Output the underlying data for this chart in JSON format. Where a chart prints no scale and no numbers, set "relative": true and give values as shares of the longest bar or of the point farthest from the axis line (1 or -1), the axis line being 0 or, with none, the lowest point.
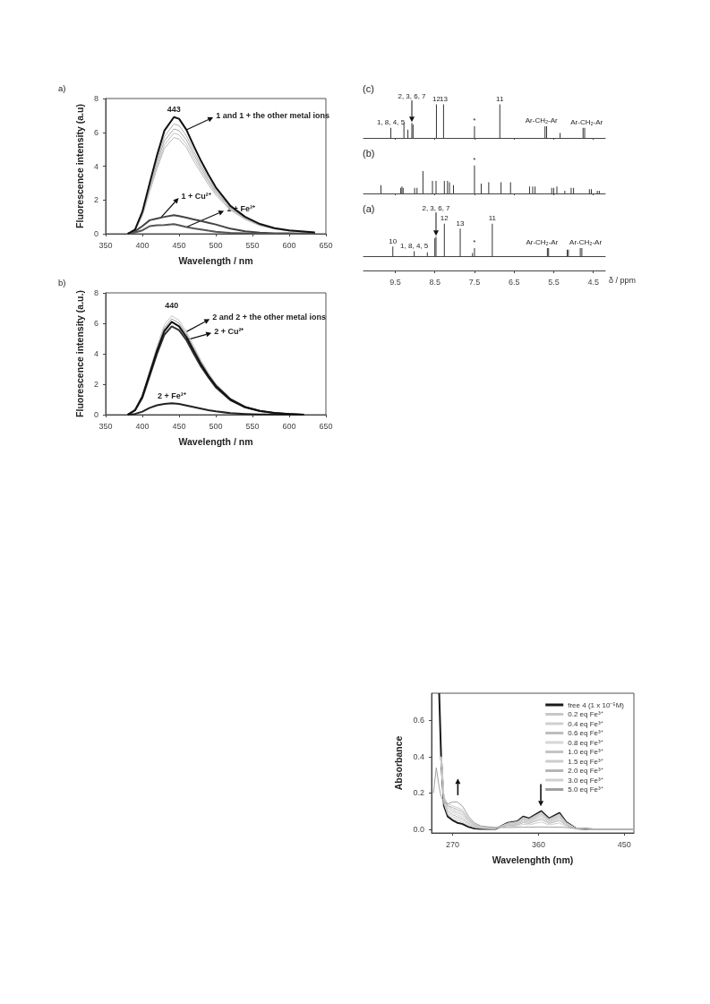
{
  "chart_data": [
    {
      "type": "line",
      "title": "a)",
      "xlabel": "Wavelength / nm",
      "ylabel": "Fluorescence intensity (a.u)",
      "xlim": [
        350,
        650
      ],
      "xticks": [
        350,
        400,
        450,
        500,
        550,
        600,
        650
      ],
      "ylim": [
        0,
        8
      ],
      "yticks": [
        0,
        2,
        4,
        6,
        8
      ],
      "x": [
        380,
        390,
        400,
        410,
        420,
        430,
        443,
        450,
        460,
        470,
        480,
        490,
        500,
        520,
        540,
        560,
        580,
        600,
        620,
        635
      ],
      "series": [
        {
          "color": "#b0b0b0",
          "values": [
            0,
            0.23,
            1.2,
            2.8,
            4.4,
            5.75,
            6.5,
            6.4,
            5.8,
            4.9,
            4.05,
            3.3,
            2.6,
            1.55,
            0.95,
            0.55,
            0.31,
            0.19,
            0.12,
            0.07
          ]
        },
        {
          "color": "#a8a8a8",
          "values": [
            0,
            0.22,
            1.15,
            2.7,
            4.2,
            5.5,
            6.2,
            6.1,
            5.55,
            4.7,
            3.9,
            3.15,
            2.5,
            1.5,
            0.9,
            0.52,
            0.3,
            0.18,
            0.11,
            0.07
          ]
        },
        {
          "color": "#c0c0c0",
          "values": [
            0,
            0.21,
            1.1,
            2.6,
            4.0,
            5.25,
            5.95,
            5.85,
            5.3,
            4.5,
            3.75,
            3.05,
            2.4,
            1.45,
            0.88,
            0.5,
            0.29,
            0.17,
            0.11,
            0.07
          ]
        },
        {
          "color": "#b8b8b8",
          "values": [
            0,
            0.2,
            1.05,
            2.5,
            3.85,
            5.05,
            5.7,
            5.6,
            5.1,
            4.3,
            3.6,
            2.9,
            2.3,
            1.4,
            0.85,
            0.48,
            0.28,
            0.17,
            0.1,
            0.06
          ]
        },
        {
          "color": "#444444",
          "values": [
            0,
            0.15,
            0.45,
            0.8,
            0.9,
            1.0,
            1.1,
            1.05,
            0.95,
            0.85,
            0.75,
            0.65,
            0.55,
            0.3,
            0.15,
            0.07,
            0.03,
            0.02,
            0.01,
            0
          ]
        },
        {
          "color": "#555555",
          "values": [
            0,
            0.08,
            0.2,
            0.45,
            0.5,
            0.52,
            0.57,
            0.5,
            0.4,
            0.32,
            0.25,
            0.18,
            0.12,
            0.05,
            0.02,
            0,
            0,
            0,
            0,
            0
          ]
        },
        {
          "color": "#111111",
          "values": [
            0,
            0.25,
            1.3,
            3.0,
            4.65,
            6.1,
            6.9,
            6.8,
            6.15,
            5.2,
            4.3,
            3.5,
            2.75,
            1.65,
            1.0,
            0.58,
            0.33,
            0.2,
            0.13,
            0.08
          ]
        }
      ],
      "annotations": [
        {
          "text": "443",
          "x": 443,
          "y": 6.9
        },
        {
          "text": "1 and 1 + the other metal ions",
          "x": 460,
          "y": 6.15
        },
        {
          "text": "1 + Cu²⁺",
          "x": 425,
          "y": 0.95
        },
        {
          "text": "1 + Fe³⁺",
          "x": 460,
          "y": 0.4
        }
      ]
    },
    {
      "type": "bar",
      "title": "(c)",
      "relative": true,
      "tick_labels": false,
      "xlim": [
        10.3,
        4.2
      ],
      "xticks": [
        9.5,
        8.5,
        7.5,
        6.5,
        5.5,
        4.5
      ],
      "series": [
        {
          "color": "#333333",
          "x": [
            9.61,
            9.28,
            9.18,
            9.08,
            9.05,
            8.46,
            8.28,
            7.5,
            6.86,
            5.72,
            5.68,
            5.34,
            4.76,
            4.72
          ],
          "values": [
            0.3,
            0.45,
            0.25,
            0.45,
            0.4,
            1,
            1,
            0.35,
            1,
            0.35,
            0.35,
            0.15,
            0.3,
            0.3
          ]
        }
      ],
      "annotations": [
        {
          "text": "1, 8, 4, 5",
          "x": 9.61,
          "y": 0.3
        },
        {
          "text": "2, 3, 6, 7",
          "x": 9.08,
          "y": 0.45
        },
        {
          "text": "12",
          "x": 8.46,
          "y": 1
        },
        {
          "text": "13",
          "x": 8.28,
          "y": 1
        },
        {
          "text": "*",
          "x": 7.5,
          "y": 0.35
        },
        {
          "text": "11",
          "x": 6.86,
          "y": 1
        },
        {
          "text": "Ar-CH₂-Ar",
          "x": 5.72,
          "y": 0.35
        },
        {
          "text": "Ar-CH₂-Ar",
          "x": 4.76,
          "y": 0.3
        }
      ]
    },
    {
      "type": "bar",
      "title": "(b)",
      "relative": true,
      "tick_labels": false,
      "xlim": [
        10.3,
        4.2
      ],
      "xticks": [
        9.5,
        8.5,
        7.5,
        6.5,
        5.5,
        4.5
      ],
      "series": [
        {
          "color": "#333333",
          "x": [
            9.86,
            9.36,
            9.33,
            9.3,
            9.01,
            8.95,
            8.8,
            8.56,
            8.47,
            8.26,
            8.18,
            8.13,
            8.03,
            7.5,
            7.33,
            7.14,
            6.83,
            6.59,
            6.11,
            6.03,
            5.97,
            5.55,
            5.5,
            5.42,
            5.22,
            5.06,
            5.0,
            4.6,
            4.55,
            4.4,
            4.35
          ],
          "values": [
            0.3,
            0.2,
            0.25,
            0.2,
            0.2,
            0.2,
            0.8,
            0.45,
            0.45,
            0.45,
            0.45,
            0.4,
            0.3,
            1,
            0.35,
            0.4,
            0.4,
            0.4,
            0.25,
            0.25,
            0.25,
            0.2,
            0.2,
            0.25,
            0.1,
            0.2,
            0.2,
            0.15,
            0.15,
            0.1,
            0.1
          ]
        }
      ],
      "annotations": [
        {
          "text": "*",
          "x": 7.5,
          "y": 1
        }
      ]
    },
    {
      "type": "bar",
      "title": "(a)",
      "relative": true,
      "tick_labels": "x",
      "xlabel": "δ / ppm",
      "xlim": [
        10.3,
        4.2
      ],
      "xticks": [
        9.5,
        8.5,
        7.5,
        6.5,
        5.5,
        4.5
      ],
      "series": [
        {
          "color": "#333333",
          "x": [
            9.56,
            9.02,
            8.69,
            8.5,
            8.47,
            8.26,
            7.86,
            7.55,
            7.5,
            7.05,
            5.66,
            5.63,
            5.16,
            5.13,
            4.83,
            4.79
          ],
          "values": [
            0.3,
            0.15,
            0.12,
            0.55,
            0.6,
            1,
            0.85,
            0.1,
            0.25,
            1,
            0.25,
            0.25,
            0.2,
            0.2,
            0.25,
            0.25
          ]
        }
      ],
      "annotations": [
        {
          "text": "10",
          "x": 9.56,
          "y": 0.3
        },
        {
          "text": "1, 8, 4, 5",
          "x": 9.02,
          "y": 0.15
        },
        {
          "text": "2, 3, 6, 7",
          "x": 8.47,
          "y": 0.6
        },
        {
          "text": "12",
          "x": 8.26,
          "y": 1
        },
        {
          "text": "13",
          "x": 7.86,
          "y": 0.85
        },
        {
          "text": "*",
          "x": 7.5,
          "y": 0.25
        },
        {
          "text": "11",
          "x": 7.05,
          "y": 1
        },
        {
          "text": "Ar-CH₂-Ar",
          "x": 5.66,
          "y": 0.25
        },
        {
          "text": "Ar-CH₂-Ar",
          "x": 4.83,
          "y": 0.25
        }
      ]
    },
    {
      "type": "line",
      "title": "b)",
      "xlabel": "Wavelength / nm",
      "ylabel": "Fluorescence intensity (a.u.)",
      "xlim": [
        350,
        650
      ],
      "xticks": [
        350,
        400,
        450,
        500,
        550,
        600,
        650
      ],
      "ylim": [
        0,
        8
      ],
      "yticks": [
        0,
        2,
        4,
        6,
        8
      ],
      "x": [
        380,
        390,
        400,
        410,
        420,
        430,
        440,
        450,
        460,
        470,
        480,
        490,
        500,
        520,
        540,
        560,
        580,
        600,
        620
      ],
      "series": [
        {
          "color": "#c4c4c4",
          "values": [
            0,
            0.32,
            1.3,
            2.9,
            4.5,
            5.9,
            6.5,
            6.2,
            5.45,
            4.5,
            3.55,
            2.75,
            2.05,
            1.1,
            0.55,
            0.27,
            0.13,
            0.05,
            0
          ]
        },
        {
          "color": "#9a9a9a",
          "values": [
            0,
            0.31,
            1.25,
            2.8,
            4.35,
            5.7,
            6.3,
            6.0,
            5.3,
            4.35,
            3.45,
            2.65,
            1.98,
            1.05,
            0.53,
            0.26,
            0.12,
            0.05,
            0
          ]
        },
        {
          "color": "#333333",
          "values": [
            0,
            0.28,
            1.1,
            2.55,
            4.0,
            5.25,
            5.8,
            5.55,
            4.9,
            4.0,
            3.15,
            2.45,
            1.8,
            0.95,
            0.48,
            0.24,
            0.11,
            0.04,
            0
          ]
        },
        {
          "color": "#222222",
          "values": [
            0,
            0.05,
            0.2,
            0.45,
            0.62,
            0.7,
            0.75,
            0.7,
            0.6,
            0.5,
            0.4,
            0.3,
            0.22,
            0.1,
            0.05,
            0.02,
            0.01,
            0,
            0
          ]
        },
        {
          "color": "#111111",
          "values": [
            0,
            0.3,
            1.2,
            2.7,
            4.2,
            5.5,
            6.1,
            5.8,
            5.1,
            4.2,
            3.3,
            2.55,
            1.9,
            1.0,
            0.5,
            0.25,
            0.12,
            0.05,
            0
          ]
        }
      ],
      "annotations": [
        {
          "text": "440",
          "x": 440,
          "y": 6.1
        },
        {
          "text": "2 and 2 + the other metal ions",
          "x": 460,
          "y": 5.45
        },
        {
          "text": "2 + Cu²⁺",
          "x": 460,
          "y": 4.9
        },
        {
          "text": "2 + Fe³⁺",
          "x": 440,
          "y": 0.75
        }
      ]
    },
    {
      "type": "line",
      "xlabel": "Wavelenghth (nm)",
      "ylabel": "Absorbance",
      "xlim": [
        248,
        460
      ],
      "xticks": [
        270,
        360,
        450
      ],
      "ylim": [
        -0.02,
        0.75
      ],
      "yticks": [
        {
          "value": 0,
          "label": "0.0"
        },
        {
          "value": 0.2,
          "label": "0.2"
        },
        {
          "value": 0.4,
          "label": "0.4"
        },
        {
          "value": 0.6,
          "label": "0.6"
        }
      ],
      "legend": "top right",
      "x": [
        250,
        253,
        256,
        258,
        261,
        265,
        270,
        275,
        280,
        287,
        293,
        300,
        315,
        328,
        338,
        344,
        350,
        363,
        371,
        382,
        389,
        399,
        418,
        460
      ],
      "series": [
        {
          "name": "free 4 (1 x 10⁻⁵M)",
          "color": "#1a1a1a",
          "values": [
            null,
            null,
            0.75,
            0.4,
            0.13,
            0.07,
            0.05,
            0.036,
            0.03,
            0.013,
            0.005,
            0.002,
            0.002,
            0.036,
            0.044,
            0.07,
            0.06,
            0.1,
            0.06,
            0.09,
            0.04,
            0.005,
            0,
            0
          ]
        },
        {
          "name": "0.2 eq Fe³⁺",
          "color": "#c8c8c8",
          "values": [
            null,
            null,
            null,
            0.4,
            0.14,
            0.08,
            0.06,
            0.05,
            0.04,
            0.02,
            0.01,
            0.005,
            0.003,
            0.034,
            0.042,
            0.066,
            0.057,
            0.095,
            0.057,
            0.085,
            0.038,
            0.005,
            0,
            0
          ]
        },
        {
          "name": "0.4 eq Fe³⁺",
          "color": "#cfcfcf",
          "values": [
            null,
            null,
            null,
            0.4,
            0.15,
            0.09,
            0.07,
            0.06,
            0.05,
            0.027,
            0.013,
            0.007,
            0.004,
            0.032,
            0.04,
            0.062,
            0.054,
            0.09,
            0.054,
            0.08,
            0.036,
            0.005,
            0,
            0
          ]
        },
        {
          "name": "0.6 eq Fe³⁺",
          "color": "#bdbdbd",
          "values": [
            null,
            null,
            null,
            0.4,
            0.15,
            0.1,
            0.08,
            0.07,
            0.06,
            0.033,
            0.016,
            0.008,
            0.005,
            0.03,
            0.037,
            0.058,
            0.05,
            0.085,
            0.05,
            0.075,
            0.034,
            0.005,
            0,
            0
          ]
        },
        {
          "name": "0.8 eq Fe³⁺",
          "color": "#d6d6d6",
          "values": [
            null,
            null,
            null,
            0.4,
            0.16,
            0.11,
            0.09,
            0.08,
            0.07,
            0.04,
            0.02,
            0.01,
            0.006,
            0.028,
            0.035,
            0.054,
            0.047,
            0.08,
            0.047,
            0.07,
            0.032,
            0.005,
            0,
            0
          ]
        },
        {
          "name": "1.0 eq Fe³⁺",
          "color": "#c4c4c4",
          "values": [
            null,
            null,
            null,
            0.4,
            0.16,
            0.12,
            0.1,
            0.09,
            0.08,
            0.045,
            0.022,
            0.011,
            0.007,
            0.026,
            0.032,
            0.05,
            0.043,
            0.075,
            0.043,
            0.065,
            0.03,
            0.005,
            0,
            0
          ]
        },
        {
          "name": "1.5 eq Fe³⁺",
          "color": "#cccccc",
          "values": [
            null,
            null,
            null,
            0.4,
            0.17,
            0.13,
            0.11,
            0.1,
            0.09,
            0.05,
            0.025,
            0.012,
            0.008,
            0.023,
            0.028,
            0.044,
            0.038,
            0.065,
            0.038,
            0.057,
            0.026,
            0.005,
            0,
            0
          ]
        },
        {
          "name": "2.0 eq Fe³⁺",
          "color": "#b5b5b5",
          "values": [
            null,
            null,
            null,
            0.4,
            0.17,
            0.13,
            0.12,
            0.11,
            0.1,
            0.055,
            0.028,
            0.013,
            0.009,
            0.02,
            0.024,
            0.037,
            0.032,
            0.055,
            0.032,
            0.048,
            0.022,
            0.004,
            0,
            0
          ]
        },
        {
          "name": "3.0 eq Fe³⁺",
          "color": "#d0d0d0",
          "values": [
            null,
            null,
            null,
            0.4,
            0.18,
            0.14,
            0.13,
            0.12,
            0.11,
            0.06,
            0.03,
            0.014,
            0.01,
            0.015,
            0.018,
            0.027,
            0.024,
            0.04,
            0.024,
            0.035,
            0.016,
            0.003,
            0,
            0
          ]
        },
        {
          "name": "5.0 eq Fe³⁺",
          "color": "#a0a0a0",
          "values": [
            0.2,
            0.34,
            0.23,
            0.18,
            0.15,
            0.14,
            0.15,
            0.15,
            0.13,
            0.07,
            0.035,
            0.018,
            0.01,
            0.01,
            0.011,
            0.012,
            0.012,
            0.013,
            0.012,
            0.012,
            0.01,
            0.005,
            0,
            0
          ]
        }
      ]
    }
  ]
}
